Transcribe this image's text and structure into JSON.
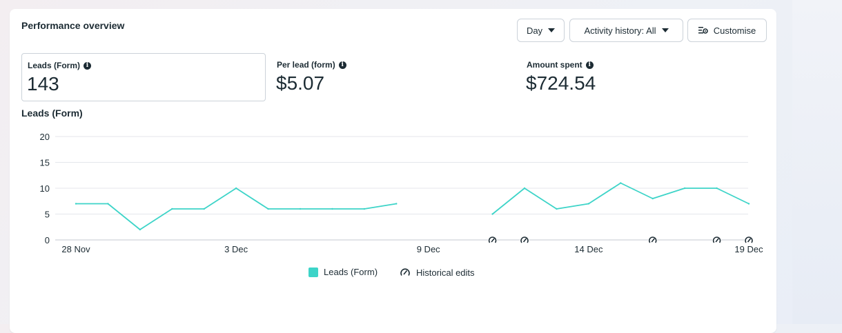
{
  "panel": {
    "title": "Performance overview",
    "day_label": "Day",
    "activity_label": "Activity history: All",
    "customise_label": "Customise"
  },
  "metrics": [
    {
      "label": "Leads (Form)",
      "value": "143"
    },
    {
      "label": "Per lead (form)",
      "value": "$5.07"
    },
    {
      "label": "Amount spent",
      "value": "$724.54"
    }
  ],
  "colors": {
    "series": "#3dd4c8",
    "grid": "#e4e6eb",
    "text": "#1c2b33"
  },
  "chart_data": {
    "type": "line",
    "title": "Leads (Form)",
    "ylim": [
      0,
      20
    ],
    "yticks": [
      0,
      5,
      10,
      15,
      20
    ],
    "grid": true,
    "x_tick_labels": [
      {
        "day": 0,
        "label": "28 Nov"
      },
      {
        "day": 5,
        "label": "3 Dec"
      },
      {
        "day": 11,
        "label": "9 Dec"
      },
      {
        "day": 16,
        "label": "14 Dec"
      },
      {
        "day": 21,
        "label": "19 Dec"
      }
    ],
    "series": [
      {
        "name": "Leads (Form)",
        "color": "#3dd4c8",
        "points": [
          {
            "day": 0,
            "value": 7
          },
          {
            "day": 1,
            "value": 7
          },
          {
            "day": 2,
            "value": 2
          },
          {
            "day": 3,
            "value": 6
          },
          {
            "day": 4,
            "value": 6
          },
          {
            "day": 5,
            "value": 10
          },
          {
            "day": 6,
            "value": 6
          },
          {
            "day": 7,
            "value": 6
          },
          {
            "day": 8,
            "value": 6
          },
          {
            "day": 9,
            "value": 6
          },
          {
            "day": 10,
            "value": 7
          },
          {
            "day": 13,
            "value": 5
          },
          {
            "day": 14,
            "value": 10
          },
          {
            "day": 15,
            "value": 6
          },
          {
            "day": 16,
            "value": 7
          },
          {
            "day": 17,
            "value": 11
          },
          {
            "day": 18,
            "value": 8
          },
          {
            "day": 19,
            "value": 10
          },
          {
            "day": 20,
            "value": 10
          },
          {
            "day": 21,
            "value": 7
          }
        ]
      }
    ],
    "historical_edit_days": [
      13,
      14,
      18,
      20,
      21
    ],
    "legend": {
      "series_label": "Leads (Form)",
      "edits_label": "Historical edits",
      "position": "bottom"
    }
  }
}
